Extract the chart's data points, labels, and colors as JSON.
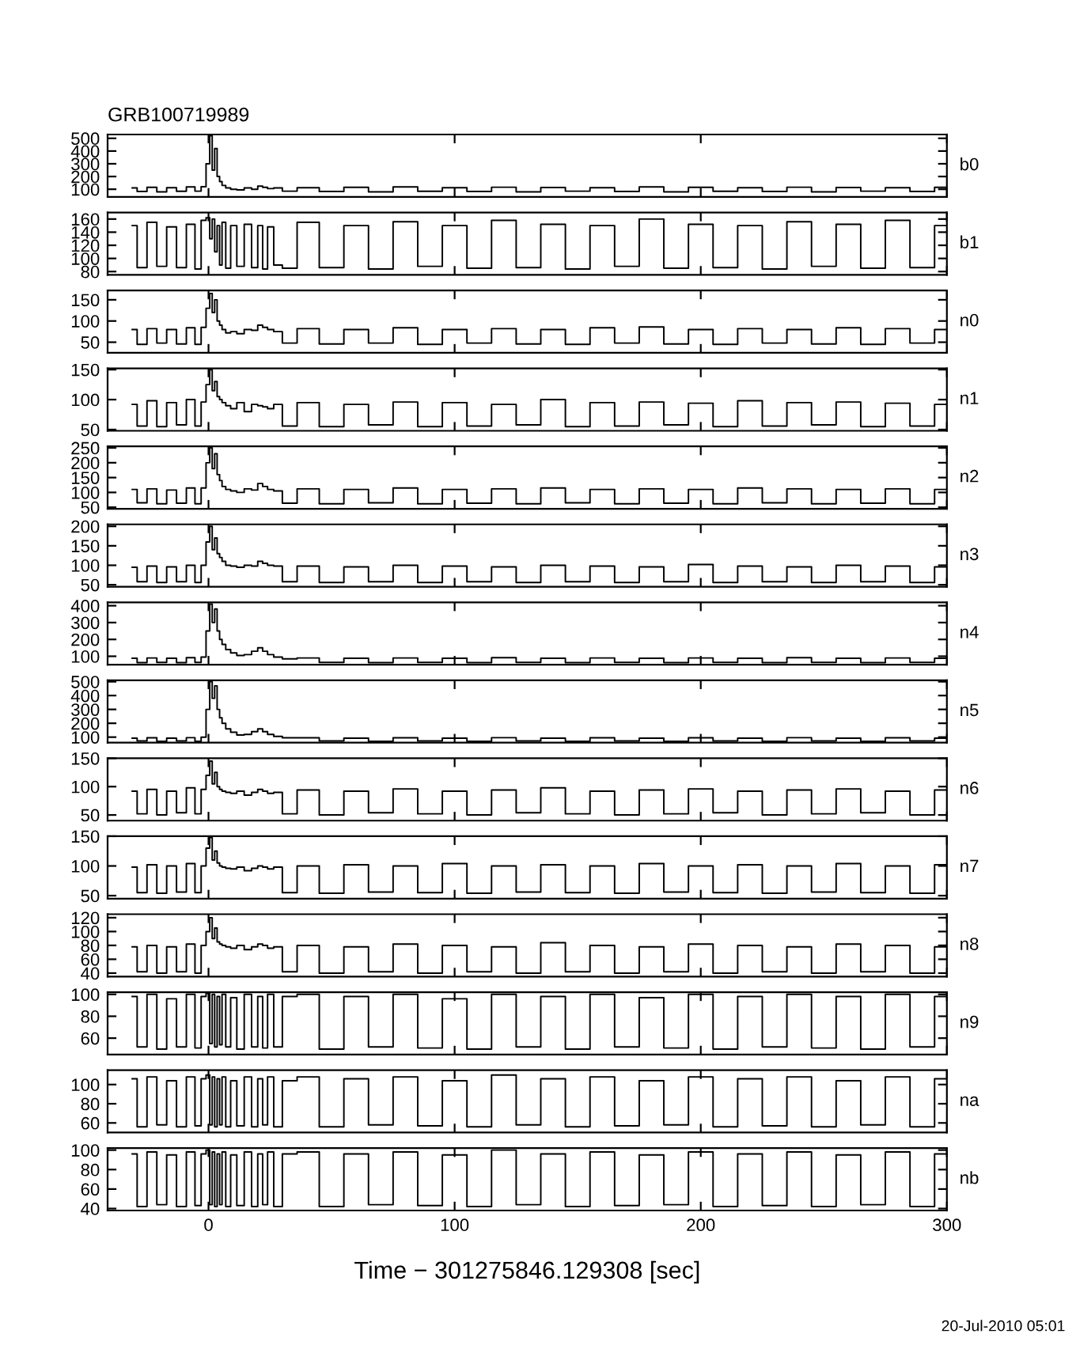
{
  "chart_data": [
    {
      "type": "step",
      "title": "GRB100719989",
      "xlim": [
        -41,
        300
      ],
      "xticks": [
        0,
        100,
        200,
        300
      ],
      "ylim": [
        40,
        530
      ],
      "yticks": [
        100,
        200,
        300,
        400,
        500
      ],
      "tick_labels": "y",
      "x": [
        -31,
        -27,
        -23,
        -19,
        -15,
        -11,
        -7,
        -4,
        -2,
        0,
        1,
        2,
        3,
        4,
        5,
        6,
        8,
        10,
        13,
        16,
        19,
        21,
        23,
        25,
        28,
        32,
        40,
        50,
        60,
        70,
        80,
        90,
        100,
        110,
        120,
        130,
        140,
        150,
        160,
        170,
        180,
        190,
        200,
        210,
        220,
        230,
        240,
        250,
        260,
        270,
        280,
        290,
        300
      ],
      "series": [
        {
          "name": "b0",
          "color": "#000000",
          "values": [
            110,
            82,
            115,
            80,
            112,
            84,
            118,
            85,
            120,
            300,
            520,
            250,
            420,
            200,
            160,
            130,
            110,
            100,
            95,
            110,
            100,
            125,
            115,
            105,
            110,
            85,
            112,
            82,
            115,
            80,
            118,
            84,
            112,
            82,
            116,
            80,
            114,
            85,
            112,
            82,
            118,
            80,
            115,
            84,
            112,
            82,
            116,
            80,
            114,
            85,
            112,
            82,
            115
          ]
        }
      ]
    },
    {
      "type": "step",
      "xlim": [
        -41,
        300
      ],
      "xticks": [
        0,
        100,
        200,
        300
      ],
      "ylim": [
        75,
        170
      ],
      "yticks": [
        80,
        100,
        120,
        140,
        160
      ],
      "tick_labels": "y",
      "x": [
        -31,
        -27,
        -23,
        -19,
        -15,
        -11,
        -7,
        -4,
        -2,
        0,
        1,
        2,
        3,
        4,
        5,
        6,
        8,
        10,
        13,
        16,
        19,
        21,
        23,
        25,
        28,
        32,
        40,
        50,
        60,
        70,
        80,
        90,
        100,
        110,
        120,
        130,
        140,
        150,
        160,
        170,
        180,
        190,
        200,
        210,
        220,
        230,
        240,
        250,
        260,
        270,
        280,
        290,
        300
      ],
      "series": [
        {
          "name": "b1",
          "color": "#000000",
          "values": [
            150,
            86,
            155,
            88,
            148,
            86,
            152,
            84,
            158,
            162,
            130,
            160,
            110,
            150,
            90,
            155,
            85,
            150,
            88,
            152,
            86,
            150,
            84,
            148,
            90,
            85,
            155,
            86,
            150,
            84,
            156,
            88,
            150,
            85,
            158,
            86,
            152,
            84,
            150,
            88,
            160,
            85,
            152,
            86,
            150,
            84,
            156,
            88,
            152,
            85,
            158,
            86,
            150
          ]
        }
      ]
    },
    {
      "type": "step",
      "xlim": [
        -41,
        300
      ],
      "xticks": [
        0,
        100,
        200,
        300
      ],
      "ylim": [
        25,
        172
      ],
      "yticks": [
        50,
        100,
        150
      ],
      "tick_labels": "y",
      "x": [
        -31,
        -27,
        -23,
        -19,
        -15,
        -11,
        -7,
        -4,
        -2,
        0,
        1,
        2,
        3,
        4,
        5,
        6,
        8,
        10,
        13,
        16,
        19,
        21,
        23,
        25,
        28,
        32,
        40,
        50,
        60,
        70,
        80,
        90,
        100,
        110,
        120,
        130,
        140,
        150,
        160,
        170,
        180,
        190,
        200,
        210,
        220,
        230,
        240,
        250,
        260,
        270,
        280,
        290,
        300
      ],
      "series": [
        {
          "name": "n0",
          "color": "#000000",
          "values": [
            80,
            45,
            82,
            48,
            80,
            46,
            84,
            45,
            85,
            130,
            165,
            120,
            150,
            100,
            90,
            80,
            72,
            75,
            70,
            80,
            78,
            90,
            85,
            80,
            75,
            48,
            82,
            46,
            80,
            48,
            84,
            45,
            80,
            48,
            82,
            46,
            80,
            45,
            84,
            48,
            86,
            46,
            80,
            45,
            82,
            48,
            80,
            46,
            84,
            45,
            82,
            48,
            80
          ]
        }
      ]
    },
    {
      "type": "step",
      "xlim": [
        -41,
        300
      ],
      "xticks": [
        0,
        100,
        200,
        300
      ],
      "ylim": [
        48,
        152
      ],
      "yticks": [
        50,
        100,
        150
      ],
      "tick_labels": "y",
      "x": [
        -31,
        -27,
        -23,
        -19,
        -15,
        -11,
        -7,
        -4,
        -2,
        0,
        1,
        2,
        3,
        4,
        5,
        6,
        8,
        10,
        13,
        16,
        19,
        21,
        23,
        25,
        28,
        32,
        40,
        50,
        60,
        70,
        80,
        90,
        100,
        110,
        120,
        130,
        140,
        150,
        160,
        170,
        180,
        190,
        200,
        210,
        220,
        230,
        240,
        250,
        260,
        270,
        280,
        290,
        300
      ],
      "series": [
        {
          "name": "n1",
          "color": "#000000",
          "values": [
            92,
            56,
            98,
            55,
            95,
            58,
            100,
            56,
            96,
            125,
            150,
            115,
            130,
            105,
            100,
            95,
            90,
            85,
            95,
            80,
            92,
            90,
            88,
            85,
            92,
            56,
            95,
            55,
            92,
            58,
            96,
            55,
            95,
            56,
            92,
            58,
            100,
            55,
            95,
            56,
            96,
            58,
            94,
            55,
            98,
            56,
            95,
            58,
            96,
            55,
            94,
            56,
            92
          ]
        }
      ]
    },
    {
      "type": "step",
      "xlim": [
        -41,
        300
      ],
      "xticks": [
        0,
        100,
        200,
        300
      ],
      "ylim": [
        45,
        255
      ],
      "yticks": [
        50,
        100,
        150,
        200,
        250
      ],
      "tick_labels": "y",
      "x": [
        -31,
        -27,
        -23,
        -19,
        -15,
        -11,
        -7,
        -4,
        -2,
        0,
        1,
        2,
        3,
        4,
        5,
        6,
        8,
        10,
        13,
        16,
        19,
        21,
        23,
        25,
        28,
        32,
        40,
        50,
        60,
        70,
        80,
        90,
        100,
        110,
        120,
        130,
        140,
        150,
        160,
        170,
        180,
        190,
        200,
        210,
        220,
        230,
        240,
        250,
        260,
        270,
        280,
        290,
        300
      ],
      "series": [
        {
          "name": "n2",
          "color": "#000000",
          "values": [
            110,
            65,
            112,
            62,
            108,
            64,
            115,
            62,
            115,
            200,
            250,
            180,
            230,
            160,
            140,
            120,
            110,
            105,
            100,
            112,
            108,
            130,
            120,
            110,
            105,
            64,
            112,
            62,
            110,
            65,
            115,
            62,
            110,
            64,
            112,
            62,
            115,
            65,
            110,
            62,
            112,
            64,
            110,
            62,
            115,
            65,
            112,
            62,
            110,
            64,
            112,
            62,
            110
          ]
        }
      ]
    },
    {
      "type": "step",
      "xlim": [
        -41,
        300
      ],
      "xticks": [
        0,
        100,
        200,
        300
      ],
      "ylim": [
        45,
        205
      ],
      "yticks": [
        50,
        100,
        150,
        200
      ],
      "tick_labels": "y",
      "x": [
        -31,
        -27,
        -23,
        -19,
        -15,
        -11,
        -7,
        -4,
        -2,
        0,
        1,
        2,
        3,
        4,
        5,
        6,
        8,
        10,
        13,
        16,
        19,
        21,
        23,
        25,
        28,
        32,
        40,
        50,
        60,
        70,
        80,
        90,
        100,
        110,
        120,
        130,
        140,
        150,
        160,
        170,
        180,
        190,
        200,
        210,
        220,
        230,
        240,
        250,
        260,
        270,
        280,
        290,
        300
      ],
      "series": [
        {
          "name": "n3",
          "color": "#000000",
          "values": [
            95,
            58,
            98,
            56,
            96,
            58,
            100,
            56,
            100,
            160,
            200,
            140,
            170,
            130,
            120,
            110,
            100,
            98,
            95,
            100,
            98,
            110,
            105,
            100,
            98,
            58,
            98,
            56,
            96,
            58,
            100,
            56,
            98,
            58,
            96,
            56,
            100,
            58,
            98,
            56,
            96,
            58,
            102,
            56,
            98,
            58,
            96,
            56,
            100,
            58,
            98,
            56,
            96
          ]
        }
      ]
    },
    {
      "type": "step",
      "xlim": [
        -41,
        300
      ],
      "xticks": [
        0,
        100,
        200,
        300
      ],
      "ylim": [
        50,
        420
      ],
      "yticks": [
        100,
        200,
        300,
        400
      ],
      "tick_labels": "y",
      "x": [
        -31,
        -27,
        -23,
        -19,
        -15,
        -11,
        -7,
        -4,
        -2,
        0,
        1,
        2,
        3,
        4,
        5,
        6,
        8,
        10,
        13,
        16,
        19,
        21,
        23,
        25,
        28,
        32,
        40,
        50,
        60,
        70,
        80,
        90,
        100,
        110,
        120,
        130,
        140,
        150,
        160,
        170,
        180,
        190,
        200,
        210,
        220,
        230,
        240,
        250,
        260,
        270,
        280,
        290,
        300
      ],
      "series": [
        {
          "name": "n4",
          "color": "#000000",
          "values": [
            88,
            62,
            90,
            64,
            88,
            62,
            92,
            64,
            95,
            250,
            410,
            300,
            380,
            250,
            200,
            170,
            140,
            120,
            105,
            110,
            130,
            150,
            130,
            110,
            95,
            85,
            90,
            64,
            88,
            62,
            90,
            64,
            88,
            62,
            92,
            64,
            88,
            62,
            90,
            64,
            88,
            62,
            90,
            64,
            88,
            62,
            92,
            64,
            88,
            62,
            90,
            64,
            88
          ]
        }
      ]
    },
    {
      "type": "step",
      "xlim": [
        -41,
        300
      ],
      "xticks": [
        0,
        100,
        200,
        300
      ],
      "ylim": [
        60,
        510
      ],
      "yticks": [
        100,
        200,
        300,
        400,
        500
      ],
      "tick_labels": "y",
      "x": [
        -31,
        -27,
        -23,
        -19,
        -15,
        -11,
        -7,
        -4,
        -2,
        0,
        1,
        2,
        3,
        4,
        5,
        6,
        8,
        10,
        13,
        16,
        19,
        21,
        23,
        25,
        28,
        32,
        40,
        50,
        60,
        70,
        80,
        90,
        100,
        110,
        120,
        130,
        140,
        150,
        160,
        170,
        180,
        190,
        200,
        210,
        220,
        230,
        240,
        250,
        260,
        270,
        280,
        290,
        300
      ],
      "series": [
        {
          "name": "n5",
          "color": "#000000",
          "values": [
            92,
            72,
            95,
            70,
            92,
            72,
            96,
            70,
            100,
            300,
            500,
            380,
            470,
            300,
            240,
            200,
            160,
            135,
            115,
            120,
            140,
            160,
            140,
            120,
            105,
            95,
            95,
            72,
            92,
            70,
            95,
            72,
            92,
            70,
            96,
            72,
            92,
            70,
            95,
            72,
            92,
            70,
            95,
            72,
            92,
            70,
            96,
            72,
            92,
            70,
            95,
            72,
            92
          ]
        }
      ]
    },
    {
      "type": "step",
      "xlim": [
        -41,
        300
      ],
      "xticks": [
        0,
        100,
        200,
        300
      ],
      "ylim": [
        40,
        150
      ],
      "yticks": [
        50,
        100,
        150
      ],
      "tick_labels": "y",
      "x": [
        -31,
        -27,
        -23,
        -19,
        -15,
        -11,
        -7,
        -4,
        -2,
        0,
        1,
        2,
        3,
        4,
        5,
        6,
        8,
        10,
        13,
        16,
        19,
        21,
        23,
        25,
        28,
        32,
        40,
        50,
        60,
        70,
        80,
        90,
        100,
        110,
        120,
        130,
        140,
        150,
        160,
        170,
        180,
        190,
        200,
        210,
        220,
        230,
        240,
        250,
        260,
        270,
        280,
        290,
        300
      ],
      "series": [
        {
          "name": "n6",
          "color": "#000000",
          "values": [
            92,
            52,
            95,
            50,
            92,
            54,
            98,
            52,
            95,
            120,
            145,
            105,
            125,
            100,
            95,
            92,
            90,
            88,
            92,
            85,
            90,
            95,
            92,
            88,
            90,
            52,
            94,
            50,
            92,
            54,
            96,
            52,
            92,
            50,
            94,
            54,
            98,
            52,
            92,
            50,
            94,
            52,
            96,
            54,
            92,
            50,
            94,
            52,
            96,
            54,
            92,
            50,
            94
          ]
        }
      ]
    },
    {
      "type": "step",
      "xlim": [
        -41,
        300
      ],
      "xticks": [
        0,
        100,
        200,
        300
      ],
      "ylim": [
        45,
        150
      ],
      "yticks": [
        50,
        100,
        150
      ],
      "tick_labels": "y",
      "x": [
        -31,
        -27,
        -23,
        -19,
        -15,
        -11,
        -7,
        -4,
        -2,
        0,
        1,
        2,
        3,
        4,
        5,
        6,
        8,
        10,
        13,
        16,
        19,
        21,
        23,
        25,
        28,
        32,
        40,
        50,
        60,
        70,
        80,
        90,
        100,
        110,
        120,
        130,
        140,
        150,
        160,
        170,
        180,
        190,
        200,
        210,
        220,
        230,
        240,
        250,
        260,
        270,
        280,
        290,
        300
      ],
      "series": [
        {
          "name": "n7",
          "color": "#000000",
          "values": [
            98,
            55,
            102,
            54,
            100,
            56,
            104,
            55,
            100,
            130,
            148,
            110,
            125,
            105,
            100,
            98,
            96,
            95,
            98,
            92,
            96,
            100,
            98,
            95,
            98,
            55,
            100,
            54,
            102,
            56,
            100,
            55,
            104,
            54,
            100,
            56,
            102,
            55,
            100,
            54,
            104,
            56,
            100,
            55,
            102,
            54,
            100,
            56,
            104,
            55,
            100,
            54,
            102
          ]
        }
      ]
    },
    {
      "type": "step",
      "xlim": [
        -41,
        300
      ],
      "xticks": [
        0,
        100,
        200,
        300
      ],
      "ylim": [
        35,
        125
      ],
      "yticks": [
        40,
        60,
        80,
        100,
        120
      ],
      "tick_labels": "y",
      "x": [
        -31,
        -27,
        -23,
        -19,
        -15,
        -11,
        -7,
        -4,
        -2,
        0,
        1,
        2,
        3,
        4,
        5,
        6,
        8,
        10,
        13,
        16,
        19,
        21,
        23,
        25,
        28,
        32,
        40,
        50,
        60,
        70,
        80,
        90,
        100,
        110,
        120,
        130,
        140,
        150,
        160,
        170,
        180,
        190,
        200,
        210,
        220,
        230,
        240,
        250,
        260,
        270,
        280,
        290,
        300
      ],
      "series": [
        {
          "name": "n8",
          "color": "#000000",
          "values": [
            78,
            42,
            80,
            40,
            78,
            42,
            82,
            40,
            80,
            100,
            120,
            90,
            105,
            85,
            82,
            80,
            78,
            76,
            80,
            74,
            78,
            82,
            80,
            76,
            78,
            42,
            80,
            40,
            78,
            42,
            82,
            40,
            80,
            42,
            78,
            40,
            84,
            42,
            80,
            40,
            78,
            42,
            82,
            40,
            80,
            42,
            78,
            40,
            82,
            42,
            80,
            40,
            78
          ]
        }
      ]
    },
    {
      "type": "step",
      "xlim": [
        -41,
        300
      ],
      "xticks": [
        0,
        100,
        200,
        300
      ],
      "ylim": [
        45,
        102
      ],
      "yticks": [
        60,
        80,
        100
      ],
      "tick_labels": "y",
      "x": [
        -31,
        -27,
        -23,
        -19,
        -15,
        -11,
        -7,
        -4,
        -2,
        0,
        1,
        2,
        3,
        4,
        5,
        6,
        8,
        10,
        13,
        16,
        19,
        21,
        23,
        25,
        28,
        32,
        40,
        50,
        60,
        70,
        80,
        90,
        100,
        110,
        120,
        130,
        140,
        150,
        160,
        170,
        180,
        190,
        200,
        210,
        220,
        230,
        240,
        250,
        260,
        270,
        280,
        290,
        300
      ],
      "series": [
        {
          "name": "n9",
          "color": "#000000",
          "values": [
            98,
            52,
            100,
            50,
            96,
            52,
            100,
            51,
            98,
            101,
            55,
            100,
            52,
            98,
            54,
            100,
            52,
            97,
            50,
            100,
            52,
            98,
            51,
            100,
            52,
            98,
            100,
            50,
            98,
            52,
            100,
            51,
            96,
            50,
            100,
            52,
            98,
            50,
            100,
            52,
            97,
            51,
            100,
            50,
            98,
            52,
            100,
            51,
            98,
            50,
            100,
            52,
            98
          ]
        }
      ]
    },
    {
      "type": "step",
      "xlim": [
        -41,
        300
      ],
      "xticks": [
        0,
        100,
        200,
        300
      ],
      "ylim": [
        50,
        115
      ],
      "yticks": [
        60,
        80,
        100
      ],
      "tick_labels": "y",
      "x": [
        -31,
        -27,
        -23,
        -19,
        -15,
        -11,
        -7,
        -4,
        -2,
        0,
        1,
        2,
        3,
        4,
        5,
        6,
        8,
        10,
        13,
        16,
        19,
        21,
        23,
        25,
        28,
        32,
        40,
        50,
        60,
        70,
        80,
        90,
        100,
        110,
        120,
        130,
        140,
        150,
        160,
        170,
        180,
        190,
        200,
        210,
        220,
        230,
        240,
        250,
        260,
        270,
        280,
        290,
        300
      ],
      "series": [
        {
          "name": "na",
          "color": "#000000",
          "values": [
            106,
            56,
            108,
            58,
            104,
            56,
            108,
            57,
            106,
            110,
            58,
            108,
            56,
            106,
            58,
            108,
            56,
            104,
            57,
            108,
            56,
            106,
            58,
            108,
            56,
            104,
            108,
            56,
            106,
            58,
            108,
            57,
            104,
            56,
            110,
            58,
            106,
            56,
            108,
            57,
            104,
            58,
            108,
            56,
            106,
            57,
            108,
            56,
            104,
            58,
            108,
            56,
            106
          ]
        }
      ]
    },
    {
      "type": "step",
      "xlim": [
        -41,
        300
      ],
      "xticks": [
        0,
        100,
        200,
        300
      ],
      "ylim": [
        38,
        102
      ],
      "yticks": [
        40,
        60,
        80,
        100
      ],
      "xlabel": "Time − 301275846.129308 [sec]",
      "annotations": [
        "20-Jul-2010 05:01"
      ],
      "x": [
        -31,
        -27,
        -23,
        -19,
        -15,
        -11,
        -7,
        -4,
        -2,
        0,
        1,
        2,
        3,
        4,
        5,
        6,
        8,
        10,
        13,
        16,
        19,
        21,
        23,
        25,
        28,
        32,
        40,
        50,
        60,
        70,
        80,
        90,
        100,
        110,
        120,
        130,
        140,
        150,
        160,
        170,
        180,
        190,
        200,
        210,
        220,
        230,
        240,
        250,
        260,
        270,
        280,
        290,
        300
      ],
      "series": [
        {
          "name": "nb",
          "color": "#000000",
          "values": [
            96,
            42,
            98,
            44,
            95,
            42,
            98,
            43,
            96,
            100,
            44,
            98,
            42,
            96,
            44,
            98,
            42,
            95,
            43,
            98,
            42,
            96,
            44,
            98,
            42,
            96,
            98,
            42,
            96,
            44,
            98,
            43,
            95,
            42,
            100,
            44,
            96,
            42,
            98,
            43,
            95,
            44,
            98,
            42,
            96,
            43,
            98,
            42,
            95,
            44,
            98,
            42,
            96
          ]
        }
      ]
    }
  ]
}
